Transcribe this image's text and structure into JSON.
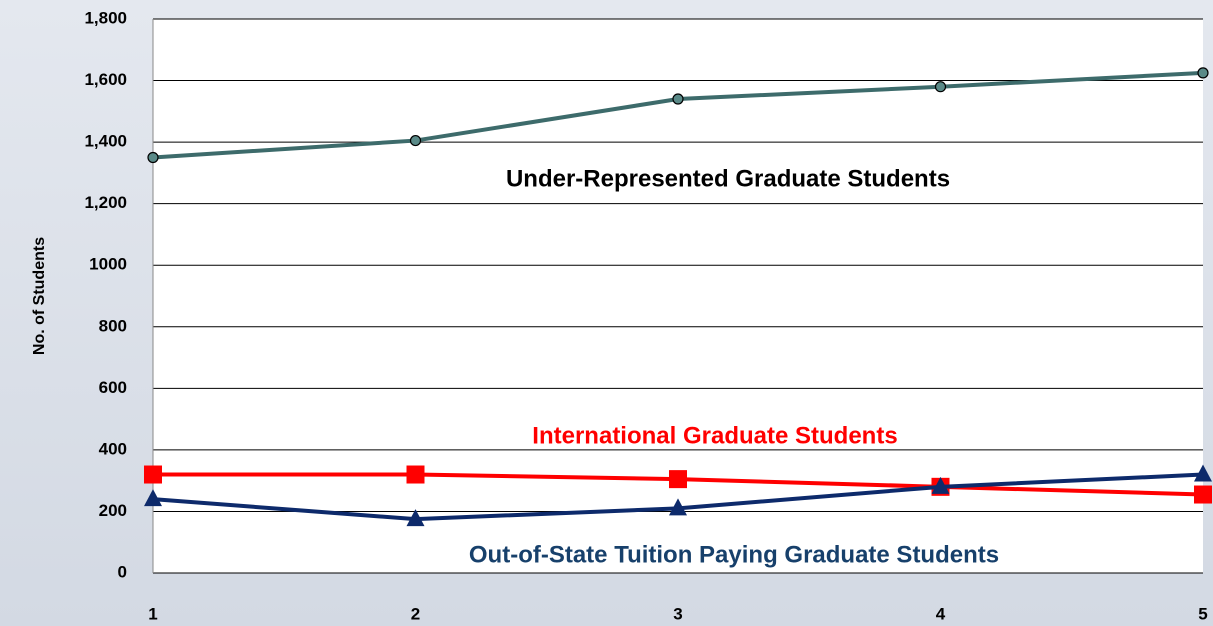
{
  "chart_data": {
    "type": "line",
    "y_label": "No. of Students",
    "x": [
      1,
      2,
      3,
      4,
      5
    ],
    "xlim": [
      1,
      5
    ],
    "xticks": [
      1,
      2,
      3,
      4,
      5
    ],
    "ylim": [
      0,
      1800
    ],
    "yticks": [
      0,
      200,
      400,
      600,
      800,
      1000,
      {
        "value": 1200,
        "label": "1,200"
      },
      {
        "value": 1400,
        "label": "1,400"
      },
      {
        "value": 1600,
        "label": "1,600"
      },
      {
        "value": 1800,
        "label": "1,800"
      }
    ],
    "grid": true,
    "series": [
      {
        "name": "Under-Represented Graduate Students",
        "color": "#3d6b6b",
        "label_color": "#000000",
        "marker": "circle",
        "values": [
          1350,
          1405,
          1540,
          1580,
          1625
        ]
      },
      {
        "name": "International Graduate Students",
        "color": "#ff0000",
        "label_color": "#ff0000",
        "marker": "square",
        "values": [
          320,
          320,
          305,
          280,
          255
        ]
      },
      {
        "name": "Out-of-State Tuition Paying Graduate Students",
        "color": "#0d2a6b",
        "label_color": "#17406b",
        "marker": "triangle",
        "values": [
          240,
          175,
          210,
          280,
          320
        ]
      }
    ]
  }
}
